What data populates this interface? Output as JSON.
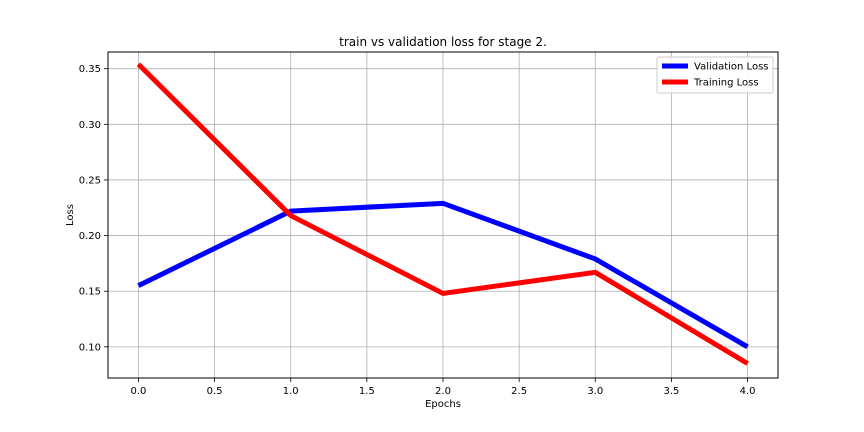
{
  "chart_data": {
    "type": "line",
    "title": "train vs validation loss for stage 2.",
    "xlabel": "Epochs",
    "ylabel": "Loss",
    "xlim": [
      -0.2,
      4.2
    ],
    "ylim": [
      0.072,
      0.365
    ],
    "xticks": [
      0.0,
      0.5,
      1.0,
      1.5,
      2.0,
      2.5,
      3.0,
      3.5,
      4.0
    ],
    "xtick_labels": [
      "0.0",
      "0.5",
      "1.0",
      "1.5",
      "2.0",
      "2.5",
      "3.0",
      "3.5",
      "4.0"
    ],
    "yticks": [
      0.1,
      0.15,
      0.2,
      0.25,
      0.3,
      0.35
    ],
    "ytick_labels": [
      "0.10",
      "0.15",
      "0.20",
      "0.25",
      "0.30",
      "0.35"
    ],
    "grid": true,
    "legend_position": "top-right",
    "x": [
      0,
      1,
      2,
      3,
      4
    ],
    "series": [
      {
        "name": "Validation Loss",
        "color": "#0000ff",
        "values": [
          0.155,
          0.222,
          0.229,
          0.179,
          0.1
        ]
      },
      {
        "name": "Training Loss",
        "color": "#ff0000",
        "values": [
          0.354,
          0.218,
          0.148,
          0.167,
          0.085
        ]
      }
    ]
  }
}
